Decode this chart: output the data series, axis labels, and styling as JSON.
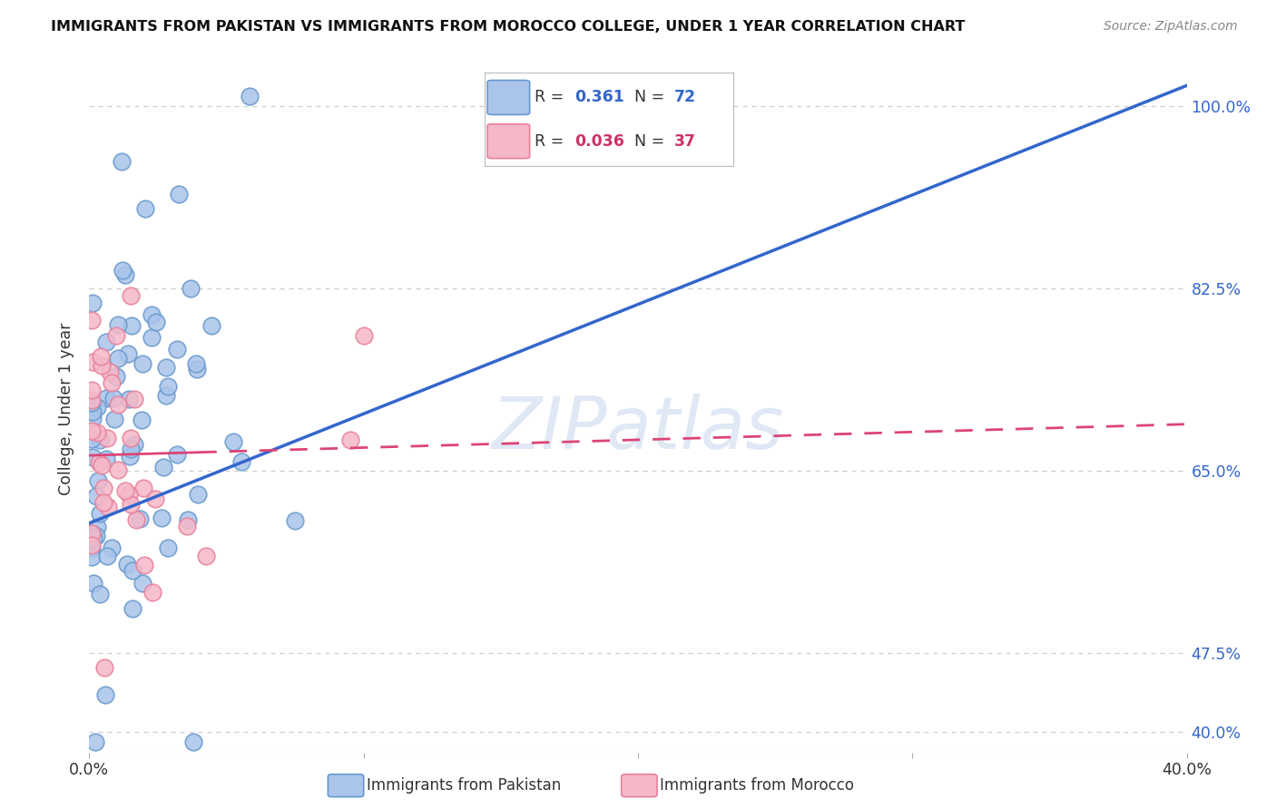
{
  "title": "IMMIGRANTS FROM PAKISTAN VS IMMIGRANTS FROM MOROCCO COLLEGE, UNDER 1 YEAR CORRELATION CHART",
  "source": "Source: ZipAtlas.com",
  "ylabel": "College, Under 1 year",
  "xlim": [
    0.0,
    40.0
  ],
  "ylim": [
    38.0,
    104.0
  ],
  "ytick_vals": [
    40.0,
    47.5,
    65.0,
    82.5,
    100.0
  ],
  "ytick_labels": [
    "40.0%",
    "47.5%",
    "65.0%",
    "82.5%",
    "100.0%"
  ],
  "pakistan_color": "#aac4ea",
  "pakistan_edge": "#6699cc",
  "morocco_color": "#f5b8c8",
  "morocco_edge": "#e8809a",
  "pakistan_line_color": "#3366cc",
  "morocco_line_color": "#dd4477",
  "legend_R_color_pak": "#3366cc",
  "legend_R_color_mor": "#cc3366",
  "grid_color": "#cccccc",
  "background_color": "#ffffff",
  "watermark": "ZIPatlas",
  "pakistan_R": 0.361,
  "pakistan_N": 72,
  "morocco_R": 0.036,
  "morocco_N": 37,
  "pak_line_x0": 0.0,
  "pak_line_y0": 60.0,
  "pak_line_x1": 40.0,
  "pak_line_y1": 102.0,
  "mor_line_x0": 0.0,
  "mor_line_y0": 66.5,
  "mor_line_x1": 40.0,
  "mor_line_y1": 69.5,
  "mor_solid_end": 4.0
}
